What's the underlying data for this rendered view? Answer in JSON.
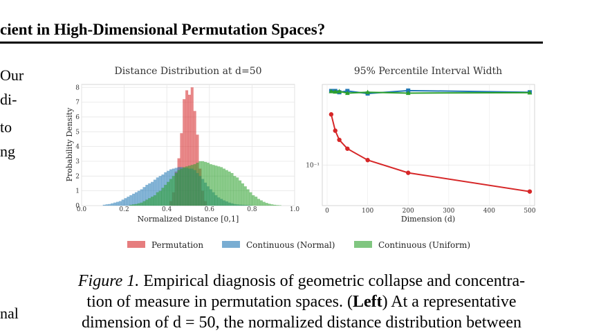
{
  "header": {
    "title_fragment": "cient in High-Dimensional Permutation Spaces?"
  },
  "left_margin_fragments": [
    "Our",
    "di-",
    "to",
    "ng",
    "nal"
  ],
  "figure": {
    "legend": [
      {
        "label": "Permutation",
        "color": "#d62728"
      },
      {
        "label": "Continuous (Normal)",
        "color": "#1f77b4"
      },
      {
        "label": "Continuous (Uniform)",
        "color": "#2ca02c"
      }
    ]
  },
  "chart_data": [
    {
      "type": "histogram",
      "title": "Distance Distribution at d=50",
      "xlabel": "Normalized Distance [0,1]",
      "ylabel": "Probability Density",
      "xlim": [
        0.0,
        1.0
      ],
      "ylim": [
        0,
        8.2
      ],
      "xticks": [
        "0.0",
        "0.2",
        "0.4",
        "0.6",
        "0.8",
        "1.0"
      ],
      "yticks": [
        "0",
        "1",
        "2",
        "3",
        "4",
        "5",
        "6",
        "7",
        "8"
      ],
      "grid": true,
      "bin_width": 0.0125,
      "series": [
        {
          "name": "Permutation",
          "color": "#d62728",
          "bin_centers": [
            0.4188,
            0.4313,
            0.4438,
            0.4563,
            0.4688,
            0.4813,
            0.4938,
            0.5063,
            0.5188,
            0.5313,
            0.5438,
            0.5563,
            0.5688,
            0.5813
          ],
          "values": [
            0.3,
            0.9,
            2.3,
            3.2,
            4.9,
            7.2,
            7.8,
            7.5,
            8.0,
            6.4,
            4.8,
            2.5,
            1.0,
            0.3
          ]
        },
        {
          "name": "Continuous (Normal)",
          "color": "#1f77b4",
          "bin_centers": [
            0.1063,
            0.1188,
            0.1313,
            0.1438,
            0.1563,
            0.1688,
            0.1813,
            0.1938,
            0.2063,
            0.2188,
            0.2313,
            0.2438,
            0.2563,
            0.2688,
            0.2813,
            0.2938,
            0.3063,
            0.3188,
            0.3313,
            0.3438,
            0.3563,
            0.3688,
            0.3813,
            0.3938,
            0.4063,
            0.4188,
            0.4313,
            0.4438,
            0.4563,
            0.4688,
            0.4813,
            0.4938,
            0.5063,
            0.5188,
            0.5313,
            0.5438,
            0.5563,
            0.5688,
            0.5813,
            0.5938,
            0.6063,
            0.6188,
            0.6313,
            0.6438,
            0.6563,
            0.6688,
            0.6813,
            0.6938,
            0.7063,
            0.7188,
            0.7313,
            0.7438,
            0.7563,
            0.7688,
            0.7813,
            0.7938
          ],
          "values": [
            0.05,
            0.08,
            0.1,
            0.15,
            0.2,
            0.25,
            0.3,
            0.4,
            0.5,
            0.6,
            0.7,
            0.8,
            0.9,
            1.0,
            1.1,
            1.25,
            1.4,
            1.5,
            1.6,
            1.75,
            1.9,
            2.0,
            2.1,
            2.25,
            2.35,
            2.45,
            2.5,
            2.55,
            2.6,
            2.6,
            2.55,
            2.55,
            2.5,
            2.5,
            2.4,
            2.2,
            2.0,
            1.8,
            1.55,
            1.3,
            1.1,
            0.9,
            0.7,
            0.55,
            0.45,
            0.35,
            0.28,
            0.2,
            0.15,
            0.1,
            0.08,
            0.06,
            0.05,
            0.04,
            0.03,
            0.02
          ]
        },
        {
          "name": "Continuous (Uniform)",
          "color": "#2ca02c",
          "bin_centers": [
            0.2313,
            0.2438,
            0.2563,
            0.2688,
            0.2813,
            0.2938,
            0.3063,
            0.3188,
            0.3313,
            0.3438,
            0.3563,
            0.3688,
            0.3813,
            0.3938,
            0.4063,
            0.4188,
            0.4313,
            0.4438,
            0.4563,
            0.4688,
            0.4813,
            0.4938,
            0.5063,
            0.5188,
            0.5313,
            0.5438,
            0.5563,
            0.5688,
            0.5813,
            0.5938,
            0.6063,
            0.6188,
            0.6313,
            0.6438,
            0.6563,
            0.6688,
            0.6813,
            0.6938,
            0.7063,
            0.7188,
            0.7313,
            0.7438,
            0.7563,
            0.7688,
            0.7813,
            0.7938,
            0.8063,
            0.8188,
            0.8313,
            0.8438,
            0.8563,
            0.8688,
            0.8813,
            0.8938,
            0.9063,
            0.9188,
            0.9313
          ],
          "values": [
            0.05,
            0.08,
            0.1,
            0.15,
            0.2,
            0.3,
            0.4,
            0.5,
            0.6,
            0.7,
            0.9,
            1.0,
            1.2,
            1.4,
            1.6,
            1.8,
            2.0,
            2.2,
            2.4,
            2.5,
            2.6,
            2.65,
            2.7,
            2.75,
            2.8,
            2.9,
            3.0,
            3.0,
            2.95,
            2.9,
            2.8,
            2.75,
            2.7,
            2.65,
            2.6,
            2.5,
            2.4,
            2.3,
            2.2,
            2.0,
            1.9,
            1.7,
            1.5,
            1.3,
            1.1,
            0.9,
            0.7,
            0.6,
            0.45,
            0.35,
            0.25,
            0.18,
            0.12,
            0.08,
            0.05,
            0.03,
            0.02
          ]
        }
      ]
    },
    {
      "type": "line",
      "title": "95% Percentile Interval Width",
      "xlabel": "Dimension (d)",
      "ylabel": "",
      "xlim": [
        -12,
        512
      ],
      "xticks": [
        "0",
        "100",
        "200",
        "300",
        "400",
        "500"
      ],
      "y_scale": "log",
      "ylim": [
        0.04,
        0.62
      ],
      "y_tick_labels": [
        "10⁻¹"
      ],
      "grid": true,
      "x": [
        10,
        20,
        30,
        50,
        100,
        200,
        500
      ],
      "series": [
        {
          "name": "Permutation",
          "color": "#d62728",
          "marker": "circle",
          "values": [
            0.315,
            0.218,
            0.177,
            0.145,
            0.112,
            0.084,
            0.055
          ]
        },
        {
          "name": "Continuous (Normal)",
          "color": "#1f77b4",
          "marker": "square",
          "values": [
            0.535,
            0.535,
            0.52,
            0.535,
            0.505,
            0.54,
            0.52
          ]
        },
        {
          "name": "Continuous (Uniform)",
          "color": "#2ca02c",
          "marker": "triangle",
          "values": [
            0.53,
            0.525,
            0.53,
            0.51,
            0.52,
            0.51,
            0.515
          ]
        }
      ]
    }
  ],
  "caption": {
    "label": "Figure 1.",
    "line1_rest": "Empirical diagnosis of geometric collapse and concentra-",
    "line2_pre": "tion of measure in permutation spaces. (",
    "line2_bold": "Left",
    "line2_post": ") At a representative",
    "line3": "dimension of d = 50, the normalized distance distribution between"
  }
}
